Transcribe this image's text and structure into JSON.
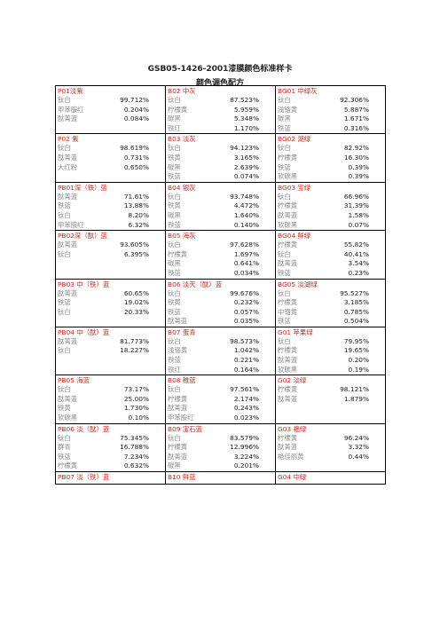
{
  "header": {
    "line1": "GSB05-1426-2001漆膜颜色标准样卡",
    "line2": "颜色调色配方"
  },
  "rows": [
    [
      {
        "title": "P01淡紫",
        "items": [
          [
            "钛白",
            "99.712%"
          ],
          [
            "甲苯胺红",
            "0.204%"
          ],
          [
            "酞菁蓝",
            "0.084%"
          ]
        ]
      },
      {
        "title": "B02 中灰",
        "items": [
          [
            "钛白",
            "87.523%"
          ],
          [
            "柠檬黄",
            "5.959%"
          ],
          [
            "碳黑",
            "5.348%"
          ],
          [
            "铁红",
            "1.170%"
          ]
        ]
      },
      {
        "title": "BG01 中绿灰",
        "items": [
          [
            "钛白",
            "92.306%"
          ],
          [
            "浅铬黄",
            "5.887%"
          ],
          [
            "碳黑",
            "1.671%"
          ],
          [
            "铁蓝",
            "0.316%"
          ]
        ]
      }
    ],
    [
      {
        "title": "P02 紫",
        "items": [
          [
            "钛白",
            "98.619%"
          ],
          [
            "酞菁蓝",
            "0.731%"
          ],
          [
            "大红粉",
            "0.650%"
          ]
        ]
      },
      {
        "title": "B03 淡灰",
        "items": [
          [
            "钛白",
            "94.123%"
          ],
          [
            "铁黄",
            "3.165%"
          ],
          [
            "碳黑",
            "2.639%"
          ],
          [
            "铁蓝",
            "0.074%"
          ]
        ]
      },
      {
        "title": "BG02 湖绿",
        "items": [
          [
            "钛白",
            "82.92%"
          ],
          [
            "柠檬黄",
            "16.30%"
          ],
          [
            "铁蓝",
            "0.39%"
          ],
          [
            "软碳黑",
            "0.39%"
          ]
        ]
      }
    ],
    [
      {
        "title": "PB01深（铁）蓝",
        "items": [
          [
            "酞菁蓝",
            "71.61%"
          ],
          [
            "铁蓝",
            "13.88%"
          ],
          [
            "钛白",
            "8.20%"
          ],
          [
            "甲苯胺红",
            "6.32%"
          ]
        ]
      },
      {
        "title": "B04 银灰",
        "items": [
          [
            "钛白",
            "93.748%"
          ],
          [
            "铁黄",
            "4.472%"
          ],
          [
            "碳黑",
            "1.640%"
          ],
          [
            "铁蓝",
            "0.140%"
          ]
        ]
      },
      {
        "title": "BG03 宝绿",
        "items": [
          [
            "钛白",
            "66.96%"
          ],
          [
            "柠檬黄",
            "31.39%"
          ],
          [
            "酞菁蓝",
            "1.58%"
          ],
          [
            "软碳黑",
            "0.07%"
          ]
        ]
      }
    ],
    [
      {
        "title": "PB02深（酞）蓝",
        "items": [
          [
            "酞菁蓝",
            "93.605%"
          ],
          [
            "钛白",
            "6.395%"
          ]
        ]
      },
      {
        "title": "B05 海灰",
        "items": [
          [
            "钛白",
            "97.628%"
          ],
          [
            "柠檬黄",
            "1.697%"
          ],
          [
            "碳黑",
            "0.641%"
          ],
          [
            "铁蓝",
            "0.034%"
          ]
        ]
      },
      {
        "title": "BG04 鲜绿",
        "items": [
          [
            "柠檬黄",
            "55.82%"
          ],
          [
            "钛白",
            "40.41%"
          ],
          [
            "酞菁蓝",
            "3.54%"
          ],
          [
            "铁蓝",
            "0.23%"
          ]
        ]
      }
    ],
    [
      {
        "title": "PB03 中（铁）蓝",
        "items": [
          [
            "酞菁蓝",
            "60.65%"
          ],
          [
            "铁蓝",
            "19.02%"
          ],
          [
            "钛白",
            "20.33%"
          ]
        ]
      },
      {
        "title": "B06 淡天（酞）蓝",
        "items": [
          [
            "钛白",
            "99.676%"
          ],
          [
            "铁黄",
            "0.232%"
          ],
          [
            "铁蓝",
            "0.057%"
          ],
          [
            "酞菁蓝",
            "0.035%"
          ]
        ]
      },
      {
        "title": "BG05 淡湖绿",
        "items": [
          [
            "钛白",
            "95.527%"
          ],
          [
            "柠檬黄",
            "3.185%"
          ],
          [
            "中铬黄",
            "0.785%"
          ],
          [
            "铁蓝",
            "0.504%"
          ]
        ]
      }
    ],
    [
      {
        "title": "PB04 中（酞）蓝",
        "items": [
          [
            "酞菁蓝",
            "81.773%"
          ],
          [
            "钛白",
            "18.227%"
          ]
        ]
      },
      {
        "title": "B07 蛋青",
        "items": [
          [
            "钛白",
            "98.573%"
          ],
          [
            "浅铬黄",
            "1.042%"
          ],
          [
            "铁蓝",
            "0.221%"
          ],
          [
            "铁红",
            "0.164%"
          ]
        ]
      },
      {
        "title": "G01 苹果绿",
        "items": [
          [
            "钛白",
            "79.95%"
          ],
          [
            "柠檬黄",
            "19.65%"
          ],
          [
            "酞菁蓝",
            "0.20%"
          ],
          [
            "软碳黑",
            "0.19%"
          ]
        ]
      }
    ],
    [
      {
        "title": "PB05 海蓝",
        "items": [
          [
            "钛白",
            "73.17%"
          ],
          [
            "酞菁蓝",
            "25.00%"
          ],
          [
            "铁黄",
            "1.730%"
          ],
          [
            "软碳黑",
            "0.10%"
          ]
        ]
      },
      {
        "title": "B08 稚蓝",
        "items": [
          [
            "钛白",
            "97.561%"
          ],
          [
            "柠檬黄",
            "2.174%"
          ],
          [
            "酞菁蓝",
            "0.243%"
          ],
          [
            "甲苯胺红",
            "0.023%"
          ]
        ]
      },
      {
        "title": "G02 淡绿",
        "items": [
          [
            "柠檬黄",
            "98.121%"
          ],
          [
            "酞菁蓝",
            "1.879%"
          ]
        ]
      }
    ],
    [
      {
        "title": "PB06 淡（酞）蓝",
        "items": [
          [
            "钛白",
            "75.345%"
          ],
          [
            "群青",
            "16.788%"
          ],
          [
            "铁蓝",
            "7.234%"
          ],
          [
            "柠檬黄",
            "0.632%"
          ]
        ]
      },
      {
        "title": "B09 宝石蓝",
        "items": [
          [
            "钛白",
            "83.579%"
          ],
          [
            "柠檬黄",
            "12.996%"
          ],
          [
            "酞菁蓝",
            "3.224%"
          ],
          [
            "碳黑",
            "0.201%"
          ]
        ]
      },
      {
        "title": "G03 艳绿",
        "items": [
          [
            "柠檬黄",
            "96.24%"
          ],
          [
            "酞菁蓝",
            "3.32%"
          ],
          [
            "艳佳丽黄",
            "0.44%"
          ]
        ]
      }
    ],
    [
      {
        "title": "PB07 淡（铁）蓝",
        "items": []
      },
      {
        "title": "B10 鲜蓝",
        "items": []
      },
      {
        "title": "G04 中绿",
        "items": []
      }
    ]
  ]
}
